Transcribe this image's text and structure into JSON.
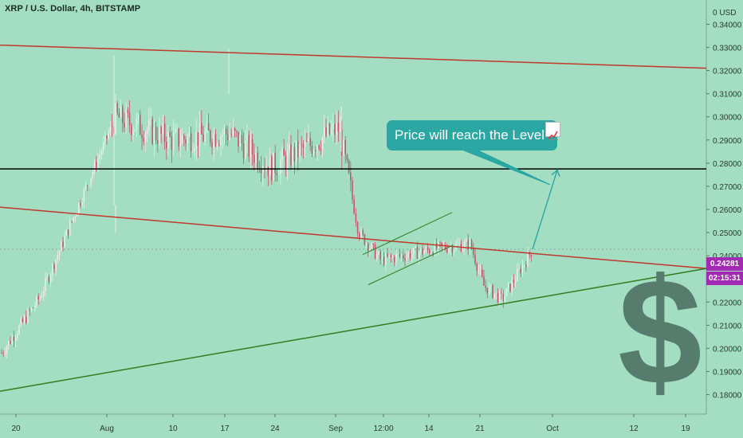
{
  "header": {
    "symbol": "XRP / U.S. Dollar, 4h, BITSTAMP"
  },
  "callout": {
    "text": "Price will reach the Level",
    "icon": "chart-increasing-icon"
  },
  "price_tags": {
    "last_price": "0.24281",
    "countdown": "02:15:31"
  },
  "watermark": {
    "glyph": "$"
  },
  "colors": {
    "background": "#a3ddc2",
    "resistance": "#c0392b",
    "support": "#2e7d1f",
    "level": "#000000",
    "candle_up": "#e8eeeb",
    "candle_down": "#c0596a",
    "callout": "#2aa6a3",
    "price_tag": "#a32ab3"
  },
  "chart_data": {
    "type": "candlestick",
    "title": "XRP / U.S. Dollar, 4h, BITSTAMP",
    "y_unit": "USD",
    "ylim": [
      0.178,
      0.352
    ],
    "y_ticks": [
      "0.34000",
      "0.33000",
      "0.32000",
      "0.31000",
      "0.30000",
      "0.29000",
      "0.28000",
      "0.27000",
      "0.26000",
      "0.25000",
      "0.24000",
      "0.23000",
      "0.22000",
      "0.21000",
      "0.20000",
      "0.19000",
      "0.18000"
    ],
    "x_ticks": [
      "20",
      "Aug",
      "10",
      "17",
      "24",
      "Sep",
      "12:00",
      "14",
      "21",
      "Oct",
      "12",
      "19"
    ],
    "last_price": 0.24281,
    "horizontal_level": 0.2775,
    "price_path": [
      {
        "x": "20",
        "y": 0.197
      },
      {
        "x": "Aug",
        "y": 0.222
      },
      {
        "x": "Aug",
        "y": 0.3
      },
      {
        "x": "10",
        "y": 0.29
      },
      {
        "x": "17",
        "y": 0.293
      },
      {
        "x": "24",
        "y": 0.278
      },
      {
        "x": "Sep",
        "y": 0.295
      },
      {
        "x": "Sep",
        "y": 0.25
      },
      {
        "x": "12:00",
        "y": 0.238
      },
      {
        "x": "14",
        "y": 0.243
      },
      {
        "x": "21",
        "y": 0.245
      },
      {
        "x": "21",
        "y": 0.227
      },
      {
        "x": "21",
        "y": 0.221
      },
      {
        "x": "Oct",
        "y": 0.2428
      }
    ],
    "annotations": [
      {
        "type": "trendline",
        "name": "upper resistance",
        "color": "#c0392b",
        "from": 0.331,
        "to": 0.321
      },
      {
        "type": "trendline",
        "name": "lower resistance",
        "color": "#c0392b",
        "from": 0.261,
        "to": 0.2345
      },
      {
        "type": "trendline",
        "name": "support",
        "color": "#2e7d1f",
        "from": 0.1815,
        "to": 0.2345
      },
      {
        "type": "horizontal",
        "name": "target level",
        "color": "#000000",
        "value": 0.2775
      },
      {
        "type": "channel",
        "name": "rising channel",
        "color": "#2e7d1f"
      },
      {
        "type": "arrow",
        "name": "projection arrow",
        "from": 0.2428,
        "to": 0.277
      }
    ]
  }
}
